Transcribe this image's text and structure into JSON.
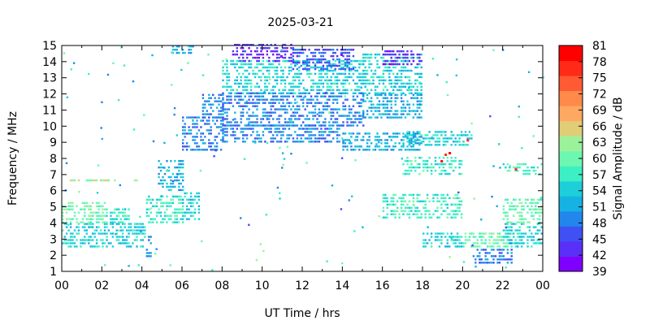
{
  "chart_data": {
    "type": "heatmap",
    "title": "2025-03-21",
    "xlabel": "UT Time / hrs",
    "ylabel": "Frequency / MHz",
    "colorbar_label": "Signal Amplitude / dB",
    "xlim": [
      0,
      24
    ],
    "ylim": [
      1,
      15
    ],
    "x_ticks": [
      "00",
      "02",
      "04",
      "06",
      "08",
      "10",
      "12",
      "14",
      "16",
      "18",
      "20",
      "22",
      "00"
    ],
    "y_ticks": [
      "1",
      "2",
      "3",
      "4",
      "5",
      "6",
      "7",
      "8",
      "9",
      "10",
      "11",
      "12",
      "13",
      "14",
      "15"
    ],
    "colorbar_ticks": [
      "39",
      "42",
      "45",
      "48",
      "51",
      "54",
      "57",
      "60",
      "63",
      "66",
      "69",
      "72",
      "75",
      "78",
      "81"
    ],
    "colorbar_colors": [
      "#7f00ff",
      "#5a2ff7",
      "#3f51f3",
      "#2386ec",
      "#15b2e3",
      "#1ccfd9",
      "#3cf0c4",
      "#6cf8b0",
      "#9cf29b",
      "#e0cd78",
      "#ffa862",
      "#ff8a4a",
      "#ff5a33",
      "#ff2a18",
      "#ff0000"
    ],
    "grid": false,
    "regions": [
      {
        "t0": 0.0,
        "t1": 4.2,
        "f0": 2.5,
        "f1": 4.0,
        "amp": 54
      },
      {
        "t0": 0.0,
        "t1": 2.2,
        "f0": 4.0,
        "f1": 5.4,
        "amp": 60
      },
      {
        "t0": 2.2,
        "t1": 3.4,
        "f0": 4.0,
        "f1": 5.0,
        "amp": 57
      },
      {
        "t0": 0.2,
        "t1": 3.8,
        "f0": 6.6,
        "f1": 6.8,
        "amp": 63
      },
      {
        "t0": 4.2,
        "t1": 4.4,
        "f0": 1.9,
        "f1": 3.2,
        "amp": 48
      },
      {
        "t0": 4.2,
        "t1": 6.0,
        "f0": 4.0,
        "f1": 5.8,
        "amp": 57
      },
      {
        "t0": 6.0,
        "t1": 6.8,
        "f0": 4.2,
        "f1": 6.0,
        "amp": 54
      },
      {
        "t0": 4.8,
        "t1": 6.0,
        "f0": 6.0,
        "f1": 8.0,
        "amp": 51
      },
      {
        "t0": 6.0,
        "t1": 8.0,
        "f0": 8.5,
        "f1": 10.5,
        "amp": 48
      },
      {
        "t0": 7.0,
        "t1": 8.0,
        "f0": 10.5,
        "f1": 12.0,
        "amp": 48
      },
      {
        "t0": 8.0,
        "t1": 15.0,
        "f0": 12.0,
        "f1": 14.0,
        "amp": 54
      },
      {
        "t0": 8.5,
        "t1": 11.5,
        "f0": 14.0,
        "f1": 15.0,
        "amp": 42
      },
      {
        "t0": 11.5,
        "t1": 14.5,
        "f0": 13.5,
        "f1": 14.8,
        "amp": 45
      },
      {
        "t0": 8.0,
        "t1": 15.0,
        "f0": 10.0,
        "f1": 12.0,
        "amp": 48
      },
      {
        "t0": 8.0,
        "t1": 14.0,
        "f0": 9.0,
        "f1": 10.0,
        "amp": 48
      },
      {
        "t0": 15.0,
        "t1": 18.0,
        "f0": 12.0,
        "f1": 14.5,
        "amp": 54
      },
      {
        "t0": 16.0,
        "t1": 18.0,
        "f0": 13.8,
        "f1": 14.6,
        "amp": 42
      },
      {
        "t0": 15.0,
        "t1": 18.0,
        "f0": 10.5,
        "f1": 12.0,
        "amp": 51
      },
      {
        "t0": 14.0,
        "t1": 18.0,
        "f0": 8.5,
        "f1": 9.5,
        "amp": 51
      },
      {
        "t0": 16.0,
        "t1": 20.0,
        "f0": 4.3,
        "f1": 5.8,
        "amp": 57
      },
      {
        "t0": 17.0,
        "t1": 20.0,
        "f0": 7.0,
        "f1": 8.2,
        "amp": 57
      },
      {
        "t0": 17.0,
        "t1": 20.5,
        "f0": 8.8,
        "f1": 9.7,
        "amp": 54
      },
      {
        "t0": 18.0,
        "t1": 20.0,
        "f0": 2.5,
        "f1": 3.5,
        "amp": 54
      },
      {
        "t0": 20.0,
        "t1": 23.0,
        "f0": 2.5,
        "f1": 3.5,
        "amp": 60
      },
      {
        "t0": 20.5,
        "t1": 22.5,
        "f0": 1.5,
        "f1": 2.5,
        "amp": 48
      },
      {
        "t0": 22.0,
        "t1": 24.0,
        "f0": 2.5,
        "f1": 4.0,
        "amp": 54
      },
      {
        "t0": 22.0,
        "t1": 24.0,
        "f0": 4.0,
        "f1": 5.5,
        "amp": 60
      },
      {
        "t0": 22.0,
        "t1": 24.0,
        "f0": 7.0,
        "f1": 7.8,
        "amp": 57
      },
      {
        "t0": 5.5,
        "t1": 6.5,
        "f0": 14.5,
        "f1": 15.0,
        "amp": 51
      }
    ],
    "hotspots": [
      {
        "t": 19.1,
        "f": 8.2,
        "amp": 78
      },
      {
        "t": 19.3,
        "f": 8.3,
        "amp": 81
      },
      {
        "t": 18.9,
        "f": 7.8,
        "amp": 81
      },
      {
        "t": 20.2,
        "f": 9.1,
        "amp": 78
      },
      {
        "t": 22.6,
        "f": 7.3,
        "amp": 78
      },
      {
        "t": 13.9,
        "f": 14.4,
        "amp": 39
      },
      {
        "t": 10.9,
        "f": 14.3,
        "amp": 39
      }
    ]
  }
}
